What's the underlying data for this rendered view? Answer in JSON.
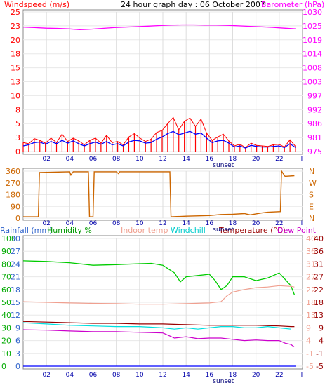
{
  "colors": {
    "wind": "#ff0000",
    "gust": "#0000ff",
    "baro": "#ff00ff",
    "direction": "#cc6600",
    "rain": "#0000ff",
    "humidity": "#00cc00",
    "indoor": "#f0a090",
    "windchill": "#00e0e0",
    "temp": "#990000",
    "dewpoint": "#cc00cc",
    "axis": "#0000aa",
    "grid": "#ffffff",
    "sunset": "#000077"
  },
  "header": {
    "title": "24 hour graph day : 06 October 2007",
    "left_label": "Windspeed (m/s)",
    "right_label": "Barometer (hPa)"
  },
  "chart_data": [
    {
      "type": "line",
      "name": "wind-baro",
      "title": "24 hour graph day : 06 October 2007",
      "ylabel_left": "Windspeed (m/s)",
      "ylabel_right": "Barometer (hPa)",
      "ylim_left": [
        0,
        25
      ],
      "ylim_right": [
        975,
        1030
      ],
      "left_ticks": [
        "25",
        "23",
        "20",
        "18",
        "15",
        "13",
        "10",
        "8",
        "5",
        "3",
        "0"
      ],
      "right_ticks": [
        "1030",
        "1025",
        "1019",
        "1014",
        "1008",
        "1003",
        "997",
        "992",
        "986",
        "981",
        "975"
      ],
      "x_ticks": [
        "02",
        "04",
        "06",
        "08",
        "10",
        "12",
        "14",
        "16",
        "18",
        "20",
        "22",
        "I"
      ],
      "x_annotation": "sunset",
      "series": [
        {
          "values": [
            1.6,
            1.4,
            2.3,
            2.0,
            1.5,
            2.4,
            1.6,
            3.1,
            1.8,
            2.4,
            1.9,
            1.2,
            2.0,
            2.4,
            1.5,
            2.9,
            1.6,
            1.8,
            1.2,
            2.6,
            3.2,
            2.4,
            1.8,
            2.2,
            3.4,
            3.8,
            5.0,
            6.1,
            3.9,
            5.4,
            6.0,
            4.5,
            5.8,
            3.3,
            2.0,
            2.6,
            3.1,
            1.9,
            1.0,
            1.3,
            0.7,
            1.5,
            1.1,
            1.0,
            0.9,
            1.2,
            1.3,
            0.8,
            2.1,
            0.9
          ]
        },
        {
          "values": [
            1.0,
            1.2,
            1.6,
            1.7,
            1.3,
            1.8,
            1.4,
            2.0,
            1.5,
            1.9,
            1.4,
            1.0,
            1.4,
            1.7,
            1.3,
            1.8,
            1.2,
            1.4,
            1.0,
            1.7,
            2.0,
            1.9,
            1.5,
            1.6,
            2.2,
            2.6,
            3.2,
            3.6,
            3.0,
            3.3,
            3.6,
            3.1,
            3.3,
            2.4,
            1.6,
            1.9,
            2.0,
            1.5,
            0.8,
            1.0,
            0.6,
            1.1,
            0.9,
            0.8,
            0.8,
            0.9,
            1.0,
            0.7,
            1.4,
            0.7
          ]
        },
        {
          "values": [
            1024.0,
            1023.8,
            1023.6,
            1023.5,
            1023.3,
            1023.0,
            1023.2,
            1023.5,
            1023.8,
            1024.0,
            1024.2,
            1024.4,
            1024.6,
            1024.8,
            1024.9,
            1024.9,
            1024.8,
            1024.8,
            1024.7,
            1024.5,
            1024.3,
            1024.1,
            1023.9,
            1023.6,
            1023.3
          ]
        }
      ]
    },
    {
      "type": "line",
      "name": "wind-direction",
      "ylim": [
        0,
        360
      ],
      "left_ticks": [
        "360",
        "270",
        "180",
        "90",
        "0"
      ],
      "right_ticks": [
        "N",
        "W",
        "S",
        "E",
        "N"
      ],
      "x_ticks": [
        "02",
        "04",
        "06",
        "08",
        "10",
        "12",
        "14",
        "16",
        "18",
        "20",
        "22",
        "I"
      ],
      "x_annotation": "sunset",
      "series": [
        {
          "values": [
            [
              0,
              10
            ],
            [
              1.3,
              10
            ],
            [
              1.4,
              350
            ],
            [
              4.0,
              355
            ],
            [
              4.1,
              330
            ],
            [
              4.3,
              355
            ],
            [
              5.6,
              355
            ],
            [
              5.7,
              10
            ],
            [
              6.0,
              10
            ],
            [
              6.1,
              355
            ],
            [
              8.0,
              355
            ],
            [
              8.2,
              340
            ],
            [
              8.3,
              355
            ],
            [
              12.6,
              355
            ],
            [
              12.7,
              10
            ],
            [
              14.0,
              15
            ],
            [
              16.0,
              20
            ],
            [
              17.0,
              28
            ],
            [
              18.0,
              30
            ],
            [
              19.0,
              35
            ],
            [
              19.5,
              25
            ],
            [
              20.5,
              40
            ],
            [
              21.0,
              45
            ],
            [
              22.1,
              50
            ],
            [
              22.2,
              360
            ],
            [
              22.5,
              320
            ],
            [
              23.3,
              325
            ]
          ]
        }
      ]
    },
    {
      "type": "line",
      "name": "rain-humidity-temp",
      "ylabels_left": [
        "Rainfall (mm)",
        "Humidity %"
      ],
      "ylabels_mid": [
        "Indoor temp",
        "Windchill"
      ],
      "ylabels_right": [
        "Temperature (°C)",
        "Dew Point"
      ],
      "ylim_humidity": [
        0,
        100
      ],
      "ylim_temp": [
        -5,
        40
      ],
      "humidity_ticks": [
        "100",
        "90",
        "80",
        "70",
        "60",
        "50",
        "40",
        "30",
        "20",
        "10",
        "0"
      ],
      "rain_ticks": [
        "30",
        "27",
        "24",
        "21",
        "18",
        "15",
        "12",
        "9",
        "6",
        "3",
        "0"
      ],
      "indoor_ticks": [
        "40",
        "36",
        "31",
        "27",
        "22",
        "18",
        "13",
        "9",
        "4",
        "-1",
        "-5"
      ],
      "temp_ticks": [
        "40",
        "36",
        "31",
        "27",
        "22",
        "18",
        "13",
        "9",
        "4",
        "-1",
        "-5"
      ],
      "x_ticks": [
        "02",
        "04",
        "06",
        "08",
        "10",
        "12",
        "14",
        "16",
        "18",
        "20",
        "22",
        "I"
      ],
      "x_annotation": "sunset",
      "series": [
        {
          "values": [
            [
              0,
              82.5
            ],
            [
              2,
              82
            ],
            [
              4,
              81
            ],
            [
              6,
              79
            ],
            [
              8,
              79.5
            ],
            [
              10,
              80.2
            ],
            [
              11,
              80.5
            ],
            [
              12,
              79
            ],
            [
              13,
              73
            ],
            [
              13.5,
              66
            ],
            [
              14,
              70
            ],
            [
              15,
              71
            ],
            [
              16,
              72
            ],
            [
              16.5,
              67
            ],
            [
              17,
              60
            ],
            [
              17.5,
              63
            ],
            [
              18,
              70
            ],
            [
              19,
              70
            ],
            [
              20,
              67
            ],
            [
              21,
              69
            ],
            [
              22,
              73
            ],
            [
              22.5,
              68
            ],
            [
              23,
              63
            ],
            [
              23.3,
              56
            ]
          ]
        },
        {
          "values": [
            [
              0,
              50.5
            ],
            [
              2,
              50
            ],
            [
              4,
              49.5
            ],
            [
              6,
              49.2
            ],
            [
              8,
              49
            ],
            [
              10,
              48.5
            ],
            [
              12,
              48.5
            ],
            [
              14,
              49
            ],
            [
              16,
              49.5
            ],
            [
              17,
              50.5
            ],
            [
              17.5,
              55
            ],
            [
              18,
              58
            ],
            [
              19,
              60
            ],
            [
              20,
              61.5
            ],
            [
              21,
              62
            ],
            [
              22,
              63
            ],
            [
              23,
              62.5
            ],
            [
              23.3,
              62
            ]
          ]
        },
        {
          "values": [
            [
              0,
              34
            ],
            [
              2,
              33
            ],
            [
              4,
              32
            ],
            [
              6,
              31.5
            ],
            [
              8,
              31
            ],
            [
              10,
              31
            ],
            [
              12,
              30
            ],
            [
              13,
              29
            ],
            [
              14,
              30
            ],
            [
              15,
              29
            ],
            [
              16,
              30
            ],
            [
              17,
              31
            ],
            [
              18,
              31
            ],
            [
              19,
              30
            ],
            [
              20,
              30
            ],
            [
              21,
              31
            ],
            [
              22,
              30
            ],
            [
              23,
              29
            ]
          ]
        },
        {
          "values": [
            [
              0,
              35
            ],
            [
              2,
              34.5
            ],
            [
              4,
              34
            ],
            [
              6,
              33.5
            ],
            [
              8,
              33.5
            ],
            [
              10,
              33
            ],
            [
              12,
              33
            ],
            [
              14,
              32.5
            ],
            [
              16,
              32
            ],
            [
              18,
              32
            ],
            [
              20,
              32
            ],
            [
              22,
              31.5
            ],
            [
              23,
              31
            ],
            [
              23.3,
              31
            ]
          ]
        },
        {
          "values": [
            [
              0,
              28.5
            ],
            [
              2,
              28.2
            ],
            [
              4,
              27.5
            ],
            [
              6,
              27
            ],
            [
              8,
              27
            ],
            [
              10,
              26.5
            ],
            [
              12,
              26
            ],
            [
              12.5,
              24
            ],
            [
              13,
              22
            ],
            [
              14,
              23
            ],
            [
              15,
              21.5
            ],
            [
              16,
              22
            ],
            [
              17,
              22
            ],
            [
              18,
              21
            ],
            [
              19,
              20
            ],
            [
              20,
              20.5
            ],
            [
              21,
              20
            ],
            [
              22,
              20
            ],
            [
              22.5,
              18
            ],
            [
              23,
              17
            ],
            [
              23.3,
              15
            ]
          ]
        },
        {
          "values": [
            [
              0,
              0
            ],
            [
              23.4,
              0
            ]
          ]
        }
      ]
    }
  ]
}
